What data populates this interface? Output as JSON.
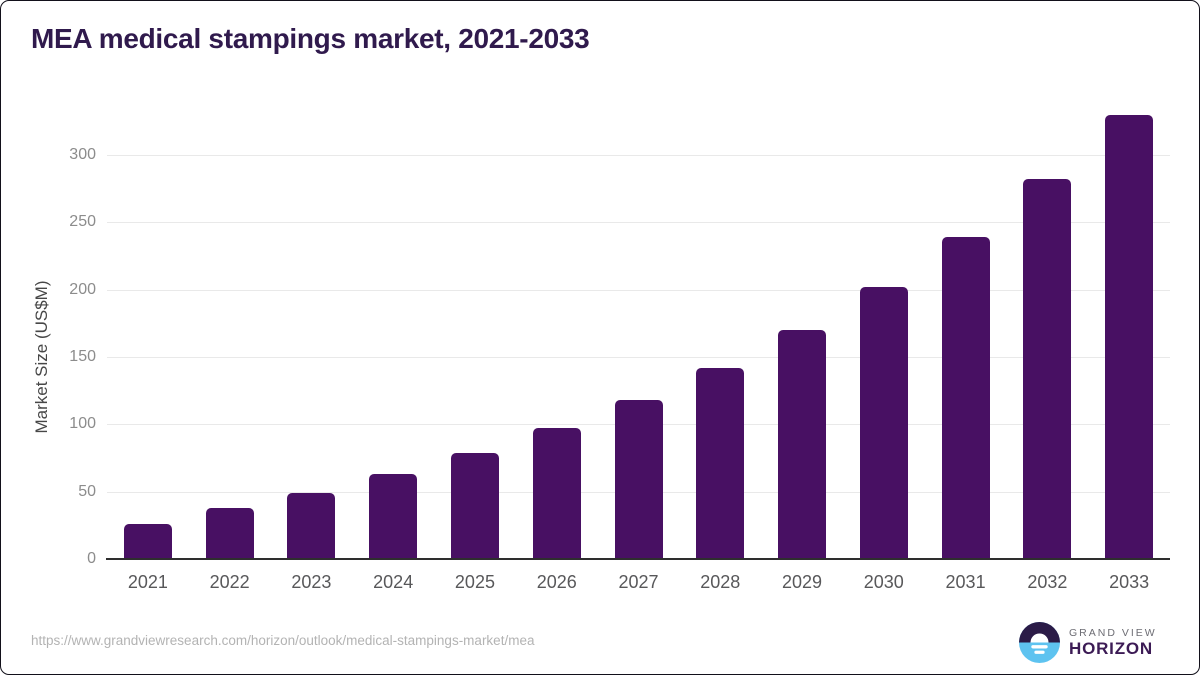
{
  "page": {
    "title": "MEA medical stampings market, 2021-2033",
    "source_url": "https://www.grandviewresearch.com/horizon/outlook/medical-stampings-market/mea"
  },
  "branding": {
    "name_top": "GRAND VIEW",
    "name_bottom": "HORIZON",
    "logo_icon": "horizon-sun-icon",
    "logo_dark_color": "#2b1b47",
    "logo_blue_color": "#5ec3f0"
  },
  "chart_data": {
    "type": "bar",
    "title": "MEA medical stampings market, 2021-2033",
    "categories": [
      "2021",
      "2022",
      "2023",
      "2024",
      "2025",
      "2026",
      "2027",
      "2028",
      "2029",
      "2030",
      "2031",
      "2032",
      "2033"
    ],
    "values": [
      26,
      38,
      49,
      63,
      79,
      97,
      118,
      142,
      170,
      202,
      239,
      282,
      330
    ],
    "xlabel": "",
    "ylabel": "Market Size (US$M)",
    "ylim": [
      0,
      340
    ],
    "yticks": [
      0,
      50,
      100,
      150,
      200,
      250,
      300
    ],
    "grid": "horizontal-only",
    "legend": "none",
    "bar_color": "#481063",
    "axis_line_color": "#2e2e2e",
    "gridline_color": "#e9e9e9"
  }
}
